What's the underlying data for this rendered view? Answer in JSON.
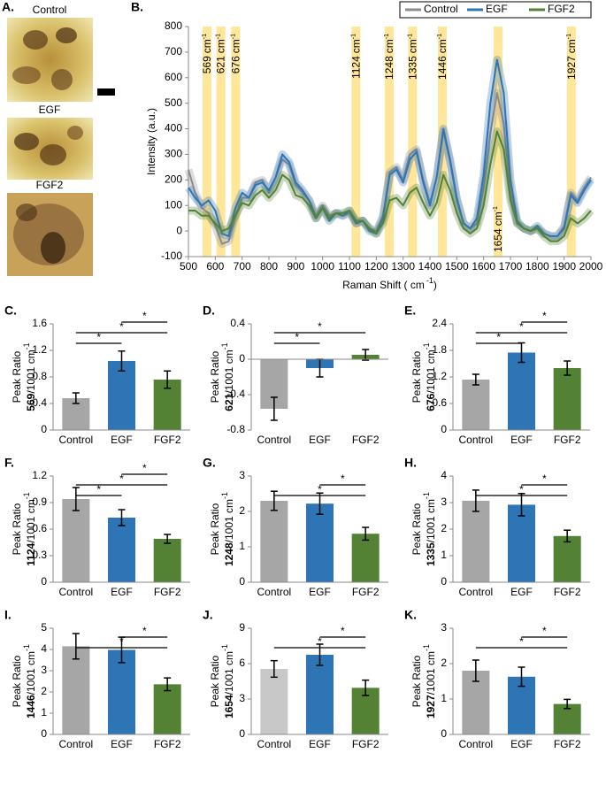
{
  "panel_a": {
    "letter": "A.",
    "labels": [
      "Control",
      "EGF",
      "FGF2"
    ]
  },
  "chart_data": [
    {
      "type": "line",
      "letter": "B.",
      "xlabel": "Raman Shift ( cm",
      "xlabel_exp": "-1",
      "xlabel_end": ")",
      "ylabel": "Intensity (a.u.)",
      "legend": "top-right",
      "x": [
        500,
        525,
        550,
        575,
        600,
        625,
        650,
        675,
        700,
        725,
        750,
        775,
        800,
        825,
        850,
        875,
        900,
        925,
        950,
        975,
        1000,
        1025,
        1050,
        1075,
        1100,
        1125,
        1150,
        1175,
        1200,
        1225,
        1250,
        1275,
        1300,
        1325,
        1350,
        1375,
        1400,
        1425,
        1450,
        1475,
        1500,
        1525,
        1550,
        1575,
        1600,
        1625,
        1650,
        1675,
        1700,
        1725,
        1750,
        1775,
        1800,
        1825,
        1850,
        1875,
        1900,
        1925,
        1950,
        1975,
        2000
      ],
      "series": [
        {
          "name": "Control",
          "color": "#8c8c8c",
          "values": [
            240,
            150,
            90,
            70,
            20,
            -50,
            -40,
            60,
            130,
            130,
            190,
            200,
            150,
            210,
            280,
            260,
            180,
            150,
            120,
            60,
            100,
            60,
            70,
            60,
            70,
            30,
            40,
            10,
            0,
            60,
            230,
            250,
            200,
            300,
            320,
            200,
            110,
            210,
            390,
            270,
            120,
            30,
            10,
            30,
            170,
            380,
            540,
            420,
            150,
            30,
            10,
            0,
            10,
            -10,
            -20,
            -20,
            20,
            150,
            120,
            170,
            210
          ]
        },
        {
          "name": "EGF",
          "color": "#2e75b6",
          "values": [
            170,
            130,
            100,
            120,
            80,
            -10,
            -20,
            90,
            150,
            130,
            180,
            190,
            160,
            210,
            300,
            270,
            190,
            160,
            120,
            50,
            90,
            40,
            70,
            60,
            80,
            30,
            40,
            0,
            -10,
            50,
            220,
            240,
            190,
            280,
            310,
            190,
            100,
            210,
            400,
            280,
            130,
            30,
            10,
            50,
            220,
            500,
            670,
            540,
            200,
            40,
            10,
            0,
            20,
            -10,
            -20,
            -20,
            10,
            140,
            110,
            160,
            200
          ]
        },
        {
          "name": "FGF2",
          "color": "#548235",
          "values": [
            80,
            80,
            60,
            60,
            30,
            0,
            10,
            60,
            110,
            100,
            140,
            160,
            130,
            160,
            220,
            200,
            140,
            130,
            100,
            50,
            90,
            50,
            70,
            70,
            80,
            40,
            40,
            10,
            -10,
            30,
            120,
            130,
            100,
            150,
            170,
            110,
            60,
            110,
            220,
            160,
            70,
            10,
            -10,
            10,
            100,
            260,
            390,
            320,
            120,
            30,
            10,
            0,
            10,
            -20,
            -40,
            -40,
            -20,
            50,
            30,
            50,
            80
          ]
        }
      ],
      "xlim": [
        500,
        2000
      ],
      "xticks": [
        500,
        600,
        700,
        800,
        900,
        1000,
        1100,
        1200,
        1300,
        1400,
        1500,
        1600,
        1700,
        1800,
        1900,
        2000
      ],
      "ylim": [
        -100,
        800
      ],
      "yticks": [
        -100,
        0,
        100,
        200,
        300,
        400,
        500,
        600,
        700,
        800
      ],
      "peaks": [
        569,
        621,
        676,
        1124,
        1248,
        1335,
        1446,
        1654,
        1927
      ],
      "peak_color": "#ffe699",
      "peak_unit": "cm",
      "peak_unit_exp": "-1"
    },
    {
      "type": "bar",
      "letter": "C.",
      "ylabel": "Peak Ratio",
      "ylabel_peak": "569",
      "ylabel_unit": "/1001 cm",
      "ylabel_unit_exp": "-1",
      "categories": [
        "Control",
        "EGF",
        "FGF2"
      ],
      "values": [
        0.48,
        1.04,
        0.76
      ],
      "errors": [
        0.08,
        0.15,
        0.13
      ],
      "colors": [
        "#a6a6a6",
        "#2e75b6",
        "#548235"
      ],
      "ylim": [
        0,
        1.6
      ],
      "yticks": [
        0,
        0.4,
        0.8,
        1.2,
        1.6
      ],
      "significance": [
        {
          "pair": [
            0,
            1
          ],
          "label": "*"
        },
        {
          "pair": [
            0,
            2
          ],
          "label": "*"
        },
        {
          "pair": [
            1,
            2
          ],
          "label": "*"
        }
      ]
    },
    {
      "type": "bar",
      "letter": "D.",
      "ylabel": "Peak Ratio",
      "ylabel_peak": "621",
      "ylabel_unit": "/1001 cm",
      "ylabel_unit_exp": "-1",
      "categories": [
        "Control",
        "EGF",
        "FGF2"
      ],
      "values": [
        -0.56,
        -0.1,
        0.05
      ],
      "errors": [
        0.13,
        0.1,
        0.06
      ],
      "colors": [
        "#a6a6a6",
        "#2e75b6",
        "#548235"
      ],
      "ylim": [
        -0.8,
        0.4
      ],
      "yticks": [
        -0.8,
        -0.4,
        0,
        0.4
      ],
      "significance": [
        {
          "pair": [
            0,
            1
          ],
          "label": "*"
        },
        {
          "pair": [
            0,
            2
          ],
          "label": "*"
        }
      ]
    },
    {
      "type": "bar",
      "letter": "E.",
      "ylabel": "Peak Ratio",
      "ylabel_peak": "676",
      "ylabel_unit": "/1001 cm",
      "ylabel_unit_exp": "-1",
      "categories": [
        "Control",
        "EGF",
        "FGF2"
      ],
      "values": [
        1.14,
        1.75,
        1.4
      ],
      "errors": [
        0.12,
        0.22,
        0.16
      ],
      "colors": [
        "#a6a6a6",
        "#2e75b6",
        "#548235"
      ],
      "ylim": [
        0,
        2.4
      ],
      "yticks": [
        0,
        0.6,
        1.2,
        1.8,
        2.4
      ],
      "significance": [
        {
          "pair": [
            0,
            1
          ],
          "label": "*"
        },
        {
          "pair": [
            0,
            2
          ],
          "label": "*"
        },
        {
          "pair": [
            1,
            2
          ],
          "label": "*"
        }
      ]
    },
    {
      "type": "bar",
      "letter": "F.",
      "ylabel": "Peak Ratio",
      "ylabel_peak": "1124",
      "ylabel_unit": "/1001 cm",
      "ylabel_unit_exp": "-1",
      "categories": [
        "Control",
        "EGF",
        "FGF2"
      ],
      "values": [
        0.94,
        0.73,
        0.49
      ],
      "errors": [
        0.13,
        0.09,
        0.05
      ],
      "colors": [
        "#a6a6a6",
        "#2e75b6",
        "#548235"
      ],
      "ylim": [
        0,
        1.2
      ],
      "yticks": [
        0,
        0.3,
        0.6,
        0.9,
        1.2
      ],
      "significance": [
        {
          "pair": [
            0,
            1
          ],
          "label": "*"
        },
        {
          "pair": [
            0,
            2
          ],
          "label": "*"
        },
        {
          "pair": [
            1,
            2
          ],
          "label": "*"
        }
      ]
    },
    {
      "type": "bar",
      "letter": "G.",
      "ylabel": "Peak Ratio",
      "ylabel_peak": "1248",
      "ylabel_unit": "/1001 cm",
      "ylabel_unit_exp": "-1",
      "categories": [
        "Control",
        "EGF",
        "FGF2"
      ],
      "values": [
        2.3,
        2.22,
        1.37
      ],
      "errors": [
        0.27,
        0.3,
        0.18
      ],
      "colors": [
        "#a6a6a6",
        "#2e75b6",
        "#548235"
      ],
      "ylim": [
        0,
        3
      ],
      "yticks": [
        0,
        1,
        2,
        3
      ],
      "significance": [
        {
          "pair": [
            0,
            2
          ],
          "label": "*"
        },
        {
          "pair": [
            1,
            2
          ],
          "label": "*"
        }
      ]
    },
    {
      "type": "bar",
      "letter": "H.",
      "ylabel": "Peak Ratio",
      "ylabel_peak": "1335",
      "ylabel_unit": "/1001 cm",
      "ylabel_unit_exp": "-1",
      "categories": [
        "Control",
        "EGF",
        "FGF2"
      ],
      "values": [
        3.07,
        2.92,
        1.74
      ],
      "errors": [
        0.4,
        0.42,
        0.22
      ],
      "colors": [
        "#a6a6a6",
        "#2e75b6",
        "#548235"
      ],
      "ylim": [
        0,
        4
      ],
      "yticks": [
        0,
        1,
        2,
        3,
        4
      ],
      "significance": [
        {
          "pair": [
            0,
            2
          ],
          "label": "*"
        },
        {
          "pair": [
            1,
            2
          ],
          "label": "*"
        }
      ]
    },
    {
      "type": "bar",
      "letter": "I.",
      "ylabel": "Peak Ratio",
      "ylabel_peak": "1446",
      "ylabel_unit": "/1001 cm",
      "ylabel_unit_exp": "-1",
      "categories": [
        "Control",
        "EGF",
        "FGF2"
      ],
      "values": [
        4.15,
        3.98,
        2.36
      ],
      "errors": [
        0.6,
        0.6,
        0.3
      ],
      "colors": [
        "#a6a6a6",
        "#2e75b6",
        "#548235"
      ],
      "ylim": [
        0,
        5
      ],
      "yticks": [
        0,
        1,
        2,
        3,
        4,
        5
      ],
      "significance": [
        {
          "pair": [
            0,
            2
          ],
          "label": "*"
        },
        {
          "pair": [
            1,
            2
          ],
          "label": "*"
        }
      ]
    },
    {
      "type": "bar",
      "letter": "J.",
      "ylabel": "Peak Ratio",
      "ylabel_peak": "1654",
      "ylabel_unit": "/1001 cm",
      "ylabel_unit_exp": "-1",
      "categories": [
        "Control",
        "EGF",
        "FGF2"
      ],
      "values": [
        5.55,
        6.75,
        3.95
      ],
      "errors": [
        0.7,
        0.9,
        0.65
      ],
      "colors": [
        "#c8c8c8",
        "#2e75b6",
        "#548235"
      ],
      "ylim": [
        0,
        9
      ],
      "yticks": [
        0,
        3,
        6,
        9
      ],
      "significance": [
        {
          "pair": [
            0,
            2
          ],
          "label": "*"
        },
        {
          "pair": [
            1,
            2
          ],
          "label": "*"
        }
      ]
    },
    {
      "type": "bar",
      "letter": "K.",
      "ylabel": "Peak Ratio",
      "ylabel_peak": "1927",
      "ylabel_unit": "/1001 cm",
      "ylabel_unit_exp": "-1",
      "categories": [
        "Control",
        "EGF",
        "FGF2"
      ],
      "values": [
        1.8,
        1.63,
        0.86
      ],
      "errors": [
        0.3,
        0.27,
        0.13
      ],
      "colors": [
        "#a6a6a6",
        "#2e75b6",
        "#548235"
      ],
      "ylim": [
        0,
        3
      ],
      "yticks": [
        0,
        1,
        2,
        3
      ],
      "significance": [
        {
          "pair": [
            0,
            2
          ],
          "label": "*"
        },
        {
          "pair": [
            1,
            2
          ],
          "label": "*"
        }
      ]
    }
  ]
}
